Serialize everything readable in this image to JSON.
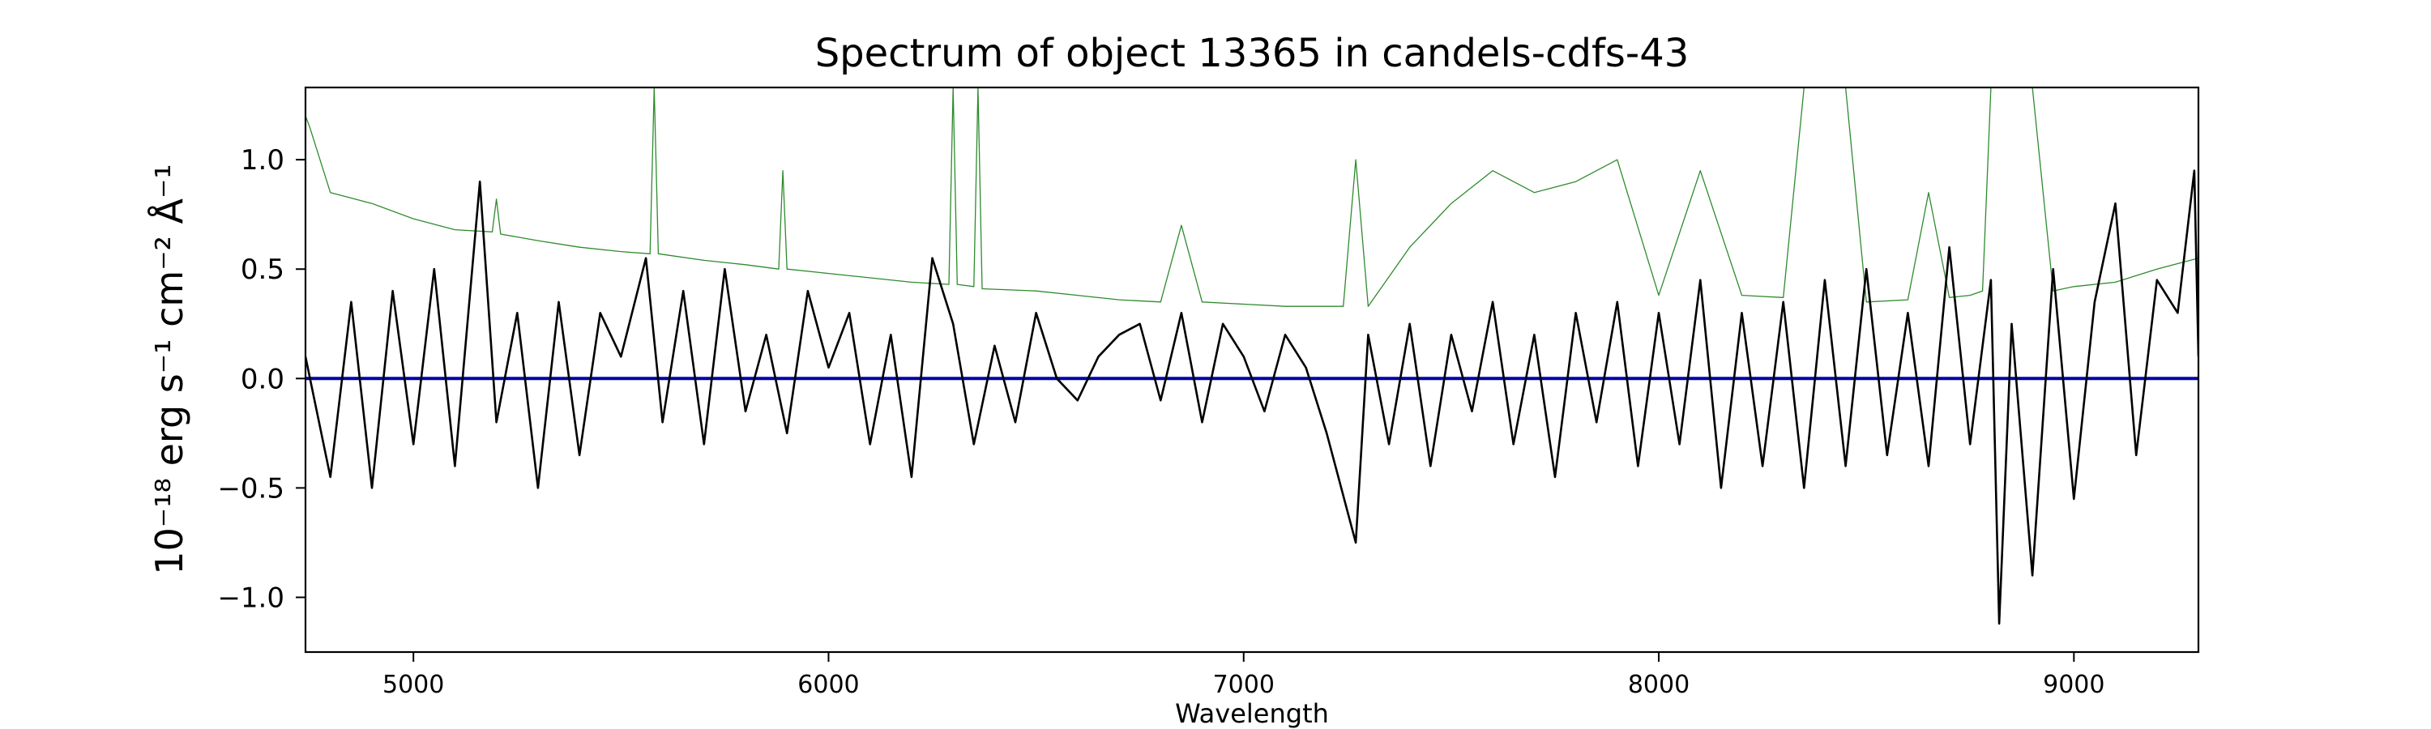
{
  "chart_data": {
    "type": "line",
    "title": "Spectrum of object 13365 in candels-cdfs-43",
    "xlabel": "Wavelength",
    "ylabel": "10⁻¹⁸ erg s⁻¹ cm⁻² Å⁻¹",
    "xlim": [
      4740,
      9300
    ],
    "ylim": [
      -1.25,
      1.33
    ],
    "xticks": [
      5000,
      6000,
      7000,
      8000,
      9000
    ],
    "xtick_labels": [
      "5000",
      "6000",
      "7000",
      "8000",
      "9000"
    ],
    "yticks": [
      -1.0,
      -0.5,
      0.0,
      0.5,
      1.0
    ],
    "ytick_labels": [
      "−1.0",
      "−0.5",
      "0.0",
      "0.5",
      "1.0"
    ],
    "grid": false,
    "legend": "none",
    "series": [
      {
        "color": "#000000",
        "x": [
          4740,
          4800,
          4850,
          4900,
          4950,
          5000,
          5050,
          5100,
          5160,
          5200,
          5250,
          5300,
          5350,
          5400,
          5450,
          5500,
          5560,
          5600,
          5650,
          5700,
          5750,
          5800,
          5850,
          5900,
          5950,
          6000,
          6050,
          6100,
          6150,
          6200,
          6250,
          6300,
          6350,
          6400,
          6450,
          6500,
          6550,
          6600,
          6650,
          6700,
          6750,
          6800,
          6850,
          6900,
          6950,
          7000,
          7050,
          7100,
          7150,
          7200,
          7270,
          7300,
          7350,
          7400,
          7450,
          7500,
          7550,
          7600,
          7650,
          7700,
          7750,
          7800,
          7850,
          7900,
          7950,
          8000,
          8050,
          8100,
          8150,
          8200,
          8250,
          8300,
          8350,
          8400,
          8450,
          8500,
          8550,
          8600,
          8650,
          8700,
          8750,
          8800,
          8820,
          8850,
          8900,
          8950,
          9000,
          9050,
          9100,
          9150,
          9200,
          9250,
          9290,
          9300
        ],
        "y": [
          0.1,
          -0.45,
          0.35,
          -0.5,
          0.4,
          -0.3,
          0.5,
          -0.4,
          0.9,
          -0.2,
          0.3,
          -0.5,
          0.35,
          -0.35,
          0.3,
          0.1,
          0.55,
          -0.2,
          0.4,
          -0.3,
          0.5,
          -0.15,
          0.2,
          -0.25,
          0.4,
          0.05,
          0.3,
          -0.3,
          0.2,
          -0.45,
          0.55,
          0.25,
          -0.3,
          0.15,
          -0.2,
          0.3,
          0.0,
          -0.1,
          0.1,
          0.2,
          0.25,
          -0.1,
          0.3,
          -0.2,
          0.25,
          0.1,
          -0.15,
          0.2,
          0.05,
          -0.25,
          -0.75,
          0.2,
          -0.3,
          0.25,
          -0.4,
          0.2,
          -0.15,
          0.35,
          -0.3,
          0.2,
          -0.45,
          0.3,
          -0.2,
          0.35,
          -0.4,
          0.3,
          -0.3,
          0.45,
          -0.5,
          0.3,
          -0.4,
          0.35,
          -0.5,
          0.45,
          -0.4,
          0.5,
          -0.35,
          0.3,
          -0.4,
          0.6,
          -0.3,
          0.45,
          -1.12,
          0.25,
          -0.9,
          0.5,
          -0.55,
          0.35,
          0.8,
          -0.35,
          0.45,
          0.3,
          0.95,
          0.1
        ]
      },
      {
        "color": "#0000aa",
        "x": [
          4740,
          9300
        ],
        "y": [
          0.0,
          0.0
        ]
      },
      {
        "color": "#2e8b2e",
        "x": [
          4740,
          4750,
          4800,
          4900,
          5000,
          5100,
          5190,
          5200,
          5210,
          5300,
          5400,
          5500,
          5570,
          5580,
          5590,
          5700,
          5800,
          5880,
          5890,
          5900,
          6000,
          6100,
          6200,
          6290,
          6300,
          6310,
          6350,
          6360,
          6370,
          6500,
          6600,
          6700,
          6800,
          6850,
          6900,
          7000,
          7100,
          7200,
          7240,
          7270,
          7300,
          7400,
          7500,
          7600,
          7700,
          7800,
          7900,
          8000,
          8100,
          8200,
          8300,
          8350,
          8400,
          8450,
          8500,
          8600,
          8650,
          8700,
          8750,
          8780,
          8800,
          8850,
          8900,
          8950,
          9000,
          9100,
          9200,
          9300
        ],
        "y": [
          1.2,
          1.15,
          0.85,
          0.8,
          0.73,
          0.68,
          0.67,
          0.82,
          0.66,
          0.63,
          0.6,
          0.58,
          0.57,
          1.33,
          0.57,
          0.54,
          0.52,
          0.5,
          0.95,
          0.5,
          0.48,
          0.46,
          0.44,
          0.43,
          1.33,
          0.43,
          0.42,
          1.33,
          0.41,
          0.4,
          0.38,
          0.36,
          0.35,
          0.7,
          0.35,
          0.34,
          0.33,
          0.33,
          0.33,
          1.0,
          0.33,
          0.6,
          0.8,
          0.95,
          0.85,
          0.9,
          1.0,
          0.38,
          0.95,
          0.38,
          0.37,
          1.33,
          1.33,
          1.33,
          0.35,
          0.36,
          0.85,
          0.37,
          0.38,
          0.4,
          1.33,
          1.33,
          1.33,
          0.4,
          0.42,
          0.44,
          0.5,
          0.55
        ]
      }
    ]
  }
}
